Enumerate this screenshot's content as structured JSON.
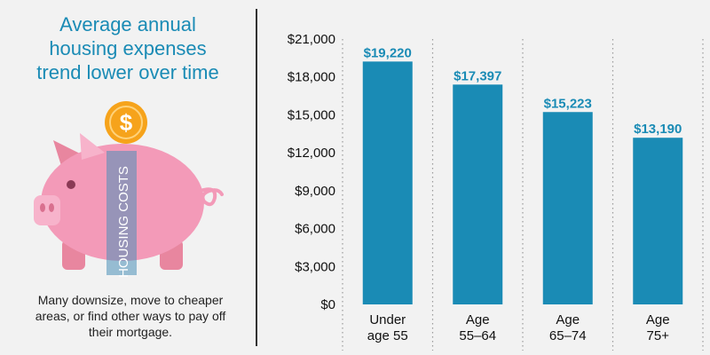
{
  "left": {
    "title": [
      "Average annual",
      "housing expenses",
      "trend lower over time"
    ],
    "coin_symbol": "$",
    "band_label": "HOUSING COSTS",
    "caption": [
      "Many downsize, move to cheaper",
      "areas, or find other ways to pay off",
      "their mortgage."
    ]
  },
  "colors": {
    "bar": "#1a8bb5",
    "accent": "#1a8bb5",
    "pig": "#f39ab8",
    "coin": "#f6a31b"
  },
  "chart_data": {
    "type": "bar",
    "categories": [
      [
        "Under",
        "age 55"
      ],
      [
        "Age",
        "55–64"
      ],
      [
        "Age",
        "65–74"
      ],
      [
        "Age",
        "75+"
      ]
    ],
    "values": [
      19220,
      17397,
      15223,
      13190
    ],
    "value_labels": [
      "$19,220",
      "$17,397",
      "$15,223",
      "$13,190"
    ],
    "yticks": [
      0,
      3000,
      6000,
      9000,
      12000,
      15000,
      18000,
      21000
    ],
    "ytick_labels": [
      "$0",
      "$3,000",
      "$6,000",
      "$9,000",
      "$12,000",
      "$15,000",
      "$18,000",
      "$21,000"
    ],
    "ylim": [
      0,
      21000
    ],
    "grid": "dotted vertical"
  }
}
